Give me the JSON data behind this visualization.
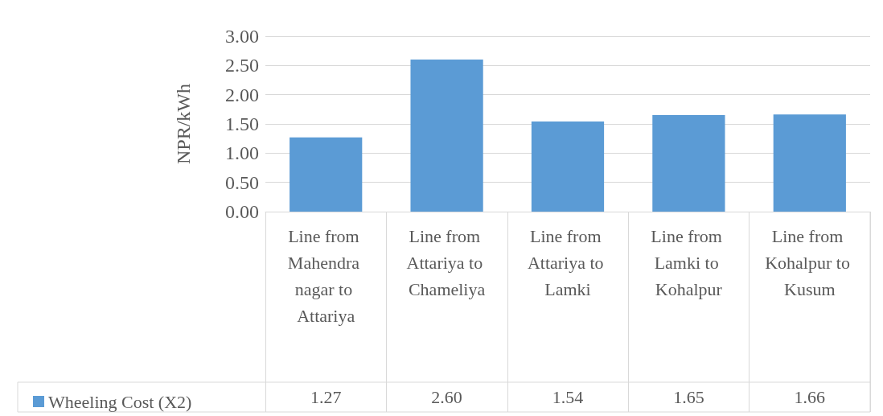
{
  "chart_data": {
    "type": "bar",
    "ylabel": "NPR/kWh",
    "categories": [
      "Line from Mahendra nagar to Attariya",
      "Line from Attariya to Chameliya",
      "Line from Attariya to Lamki",
      "Line from Lamki to Kohalpur",
      "Line from Kohalpur to Kusum"
    ],
    "series": [
      {
        "name": "Wheeling Cost (X2)",
        "color": "#5b9bd5",
        "values": [
          1.27,
          2.6,
          1.54,
          1.65,
          1.66
        ],
        "value_labels": [
          "1.27",
          "2.60",
          "1.54",
          "1.65",
          "1.66"
        ]
      }
    ],
    "ylim": [
      0,
      3
    ],
    "yticks": [
      {
        "value": 0,
        "label": "0.00"
      },
      {
        "value": 0.5,
        "label": "0.50"
      },
      {
        "value": 1,
        "label": "1.00"
      },
      {
        "value": 1.5,
        "label": "1.50"
      },
      {
        "value": 2,
        "label": "2.00"
      },
      {
        "value": 2.5,
        "label": "2.50"
      },
      {
        "value": 3,
        "label": "3.00"
      }
    ],
    "grid": "y",
    "legend": "bottom"
  }
}
